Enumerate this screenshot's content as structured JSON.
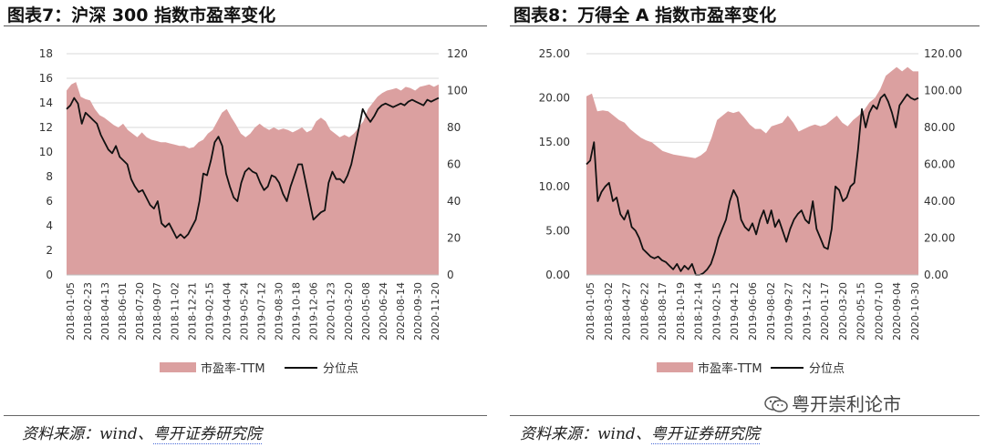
{
  "charts": [
    {
      "title": "图表7：沪深 300 指数市盈率变化",
      "source_prefix": "资料来源：wind、",
      "source_org": "粤开证券研究院",
      "chart_data": {
        "type": "area+line",
        "left_axis": {
          "min": 0,
          "max": 18,
          "step": 2,
          "decimals": 0
        },
        "right_axis": {
          "min": 0,
          "max": 120,
          "step": 20,
          "decimals": 0
        },
        "x_labels": [
          "2018-01-05",
          "2018-02-23",
          "2018-04-13",
          "2018-06-01",
          "2018-07-20",
          "2018-09-07",
          "2018-11-02",
          "2018-12-21",
          "2019-02-15",
          "2019-04-04",
          "2019-05-24",
          "2019-07-12",
          "2019-08-30",
          "2019-10-18",
          "2019-12-06",
          "2020-01-23",
          "2020-03-20",
          "2020-05-08",
          "2020-06-24",
          "2020-08-14",
          "2020-09-30",
          "2020-11-20"
        ],
        "series": [
          {
            "name": "市盈率-TTM",
            "kind": "area",
            "axis": "left",
            "color": "#dba0a0",
            "values": [
              15.0,
              15.5,
              15.7,
              14.5,
              14.3,
              14.2,
              13.5,
              13.0,
              12.8,
              12.5,
              12.2,
              12.0,
              12.3,
              11.8,
              11.5,
              11.2,
              11.6,
              11.2,
              11.0,
              10.9,
              10.8,
              10.8,
              10.7,
              10.6,
              10.5,
              10.5,
              10.3,
              10.4,
              10.8,
              11.0,
              11.5,
              11.8,
              12.5,
              13.2,
              13.5,
              12.8,
              12.2,
              11.5,
              11.2,
              11.5,
              12.0,
              12.3,
              12.0,
              11.8,
              12.0,
              11.8,
              11.9,
              11.8,
              11.6,
              11.8,
              12.0,
              11.6,
              11.8,
              12.5,
              12.8,
              12.5,
              11.8,
              11.5,
              11.2,
              11.4,
              11.2,
              11.5,
              12.0,
              12.5,
              13.5,
              14.0,
              14.5,
              14.8,
              15.0,
              15.1,
              15.2,
              15.0,
              15.3,
              15.2,
              15.0,
              15.3,
              15.4,
              15.5,
              15.3,
              15.5
            ]
          },
          {
            "name": "分位点",
            "kind": "line",
            "axis": "right",
            "color": "#111111",
            "values": [
              90,
              92,
              96,
              93,
              82,
              88,
              86,
              84,
              82,
              76,
              72,
              68,
              66,
              70,
              64,
              62,
              60,
              52,
              48,
              45,
              46,
              42,
              38,
              36,
              40,
              28,
              26,
              28,
              24,
              20,
              22,
              20,
              22,
              26,
              30,
              40,
              55,
              54,
              62,
              72,
              75,
              70,
              55,
              48,
              42,
              40,
              50,
              56,
              58,
              56,
              55,
              50,
              46,
              48,
              54,
              53,
              50,
              44,
              40,
              48,
              54,
              60,
              60,
              50,
              40,
              30,
              32,
              34,
              35,
              50,
              56,
              52,
              52,
              50,
              54,
              60,
              70,
              80,
              90,
              86,
              83,
              86,
              90,
              92,
              93,
              92,
              91,
              92,
              93,
              92,
              94,
              95,
              94,
              93,
              92,
              95,
              94,
              95,
              96
            ]
          }
        ],
        "legend": {
          "position": "bottom",
          "area_label": "市盈率-TTM",
          "line_label": "分位点"
        }
      }
    },
    {
      "title": "图表8：万得全 A 指数市盈率变化",
      "source_prefix": "资料来源：wind、",
      "source_org": "粤开证券研究院",
      "chart_data": {
        "type": "area+line",
        "left_axis": {
          "min": 0,
          "max": 25,
          "step": 5,
          "decimals": 2
        },
        "right_axis": {
          "min": 0,
          "max": 120,
          "step": 20,
          "decimals": 2
        },
        "x_labels": [
          "2018-01-05",
          "2018-03-02",
          "2018-04-27",
          "2018-06-22",
          "2018-08-17",
          "2018-10-19",
          "2018-12-14",
          "2019-02-15",
          "2019-04-12",
          "2019-06-06",
          "2019-08-02",
          "2019-09-27",
          "2019-11-22",
          "2020-01-17",
          "2020-03-20",
          "2020-05-15",
          "2020-07-10",
          "2020-09-04",
          "2020-10-30"
        ],
        "series": [
          {
            "name": "市盈率-TTM",
            "kind": "area",
            "axis": "left",
            "color": "#dba0a0",
            "values": [
              20.2,
              20.5,
              18.5,
              18.6,
              18.5,
              18.0,
              17.5,
              17.2,
              16.5,
              16.0,
              15.5,
              15.2,
              15.0,
              14.5,
              14.0,
              13.8,
              13.6,
              13.5,
              13.4,
              13.3,
              13.2,
              13.5,
              14.0,
              15.5,
              17.5,
              18.0,
              18.5,
              18.3,
              18.5,
              17.8,
              17.0,
              16.5,
              16.5,
              16.0,
              16.8,
              17.0,
              17.2,
              18.0,
              17.2,
              16.2,
              16.5,
              16.8,
              17.0,
              16.8,
              17.0,
              17.5,
              18.0,
              17.2,
              16.8,
              17.5,
              18.0,
              18.6,
              19.5,
              20.0,
              21.0,
              22.5,
              23.0,
              23.5,
              23.0,
              23.5,
              23.0,
              23.0
            ]
          },
          {
            "name": "分位点",
            "kind": "line",
            "axis": "right",
            "color": "#111111",
            "values": [
              60,
              62,
              72,
              40,
              45,
              48,
              50,
              40,
              42,
              33,
              30,
              35,
              26,
              24,
              20,
              14,
              12,
              10,
              9,
              10,
              8,
              7,
              5,
              3,
              6,
              2,
              5,
              3,
              6,
              0,
              0,
              1,
              3,
              6,
              12,
              20,
              25,
              30,
              40,
              46,
              42,
              30,
              26,
              24,
              28,
              22,
              30,
              35,
              28,
              35,
              26,
              30,
              24,
              18,
              25,
              30,
              33,
              35,
              30,
              28,
              40,
              25,
              20,
              15,
              14,
              25,
              48,
              46,
              40,
              42,
              48,
              50,
              68,
              90,
              80,
              88,
              92,
              90,
              96,
              98,
              94,
              88,
              80,
              92,
              95,
              98,
              96,
              95,
              96
            ]
          }
        ],
        "legend": {
          "position": "bottom",
          "area_label": "市盈率-TTM",
          "line_label": "分位点"
        }
      }
    }
  ],
  "watermark": "粤开崇利论市",
  "watermark_icon": "wechat-icon"
}
